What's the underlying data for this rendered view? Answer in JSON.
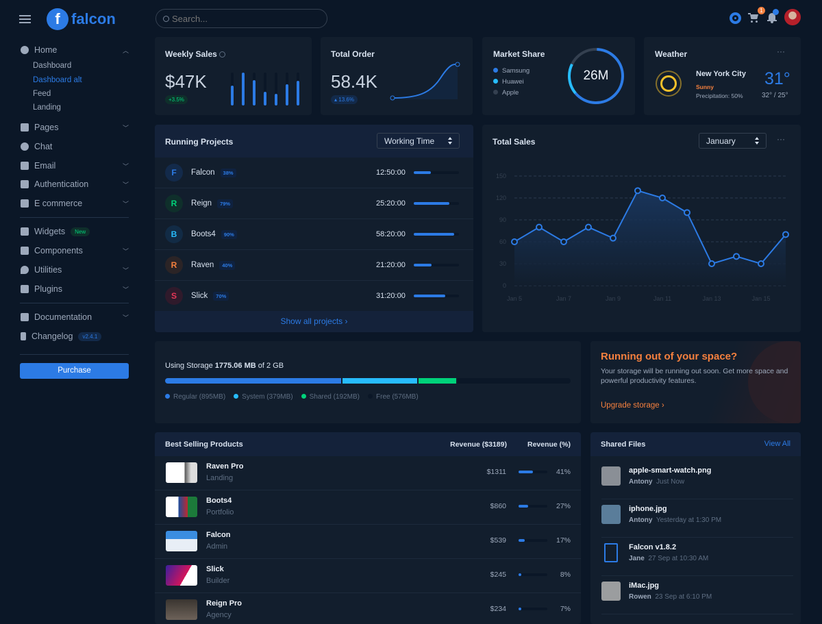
{
  "brand": {
    "name": "falcon"
  },
  "search": {
    "placeholder": "Search..."
  },
  "topbar": {
    "cart_count": "1"
  },
  "sidebar": {
    "home": {
      "label": "Home",
      "sub": [
        "Dashboard",
        "Dashboard alt",
        "Feed",
        "Landing"
      ],
      "active": "Dashboard alt"
    },
    "items": [
      {
        "label": "Pages",
        "icon": "copy-icon"
      },
      {
        "label": "Chat",
        "icon": "comments-icon"
      },
      {
        "label": "Email",
        "icon": "envelope-icon"
      },
      {
        "label": "Authentication",
        "icon": "unlock-icon"
      },
      {
        "label": "E commerce",
        "icon": "cart-icon"
      }
    ],
    "items2": [
      {
        "label": "Widgets",
        "icon": "poll-icon",
        "badge": "New"
      },
      {
        "label": "Components",
        "icon": "puzzle-icon"
      },
      {
        "label": "Utilities",
        "icon": "fire-icon"
      },
      {
        "label": "Plugins",
        "icon": "plug-icon"
      }
    ],
    "items3": [
      {
        "label": "Documentation",
        "icon": "book-icon"
      },
      {
        "label": "Changelog",
        "icon": "code-branch-icon",
        "badge": "v2.4.1"
      }
    ],
    "purchase": "Purchase"
  },
  "weekly_sales": {
    "title": "Weekly Sales",
    "value": "$47K",
    "change": "+3.5%",
    "bars": [
      60,
      100,
      78,
      42,
      36,
      65,
      74
    ]
  },
  "total_order": {
    "title": "Total Order",
    "value": "58.4K",
    "change": "13.6%"
  },
  "market_share": {
    "title": "Market Share",
    "value": "26M",
    "legend": [
      {
        "name": "Samsung",
        "color": "#2c7be5"
      },
      {
        "name": "Huawei",
        "color": "#27bcfd"
      },
      {
        "name": "Apple",
        "color": "#344050"
      }
    ]
  },
  "weather": {
    "title": "Weather",
    "city": "New York City",
    "condition": "Sunny",
    "precipitation": "Precipitation: 50%",
    "temp": "31°",
    "range": "32° / 25°"
  },
  "projects": {
    "title": "Running Projects",
    "select": "Working Time",
    "footer": "Show all projects",
    "rows": [
      {
        "letter": "F",
        "name": "Falcon",
        "pct": "38%",
        "progress": 38,
        "time": "12:50:00",
        "color": "#2c7be5",
        "bg": "#132a4a"
      },
      {
        "letter": "R",
        "name": "Reign",
        "pct": "79%",
        "progress": 79,
        "time": "25:20:00",
        "color": "#00d27a",
        "bg": "#0f2f2b"
      },
      {
        "letter": "B",
        "name": "Boots4",
        "pct": "90%",
        "progress": 90,
        "time": "58:20:00",
        "color": "#27bcfd",
        "bg": "#122b45"
      },
      {
        "letter": "R",
        "name": "Raven",
        "pct": "40%",
        "progress": 40,
        "time": "21:20:00",
        "color": "#f5803e",
        "bg": "#2b2426"
      },
      {
        "letter": "S",
        "name": "Slick",
        "pct": "70%",
        "progress": 70,
        "time": "31:20:00",
        "color": "#e63757",
        "bg": "#2f1a2b"
      }
    ]
  },
  "chart_data": {
    "type": "line",
    "title": "Total Sales",
    "select": "January",
    "x": [
      "Jan 5",
      "Jan 6",
      "Jan 7",
      "Jan 8",
      "Jan 9",
      "Jan 10",
      "Jan 11",
      "Jan 12",
      "Jan 13",
      "Jan 14",
      "Jan 15",
      "Jan 16"
    ],
    "xticks": [
      "Jan 5",
      "Jan 7",
      "Jan 9",
      "Jan 11",
      "Jan 13",
      "Jan 15"
    ],
    "values": [
      60,
      80,
      60,
      80,
      65,
      130,
      120,
      100,
      30,
      40,
      30,
      70
    ],
    "yticks": [
      "150",
      "120",
      "90",
      "60",
      "30",
      "0"
    ],
    "ylim": [
      0,
      150
    ],
    "grid": true,
    "color": "#2c7be5"
  },
  "storage": {
    "label": "Using Storage ",
    "used": "1775.06 MB",
    "of": " of 2 GB",
    "segments": [
      {
        "name": "Regular (895MB)",
        "mb": 895,
        "color": "#2c7be5"
      },
      {
        "name": "System (379MB)",
        "mb": 379,
        "color": "#27bcfd"
      },
      {
        "name": "Shared (192MB)",
        "mb": 192,
        "color": "#00d27a"
      },
      {
        "name": "Free (576MB)",
        "mb": 576,
        "color": "#0b1727"
      }
    ]
  },
  "space": {
    "title": "Running out of your space?",
    "text": "Your storage will be running out soon. Get more space and powerful productivity features.",
    "link": "Upgrade storage"
  },
  "products": {
    "title": "Best Selling Products",
    "col1": "Revenue ($3189)",
    "col2": "Revenue (%)",
    "rows": [
      {
        "name": "Raven Pro",
        "cat": "Landing",
        "rev": "$1311",
        "pct": "41%",
        "p": 41
      },
      {
        "name": "Boots4",
        "cat": "Portfolio",
        "rev": "$860",
        "pct": "27%",
        "p": 27
      },
      {
        "name": "Falcon",
        "cat": "Admin",
        "rev": "$539",
        "pct": "17%",
        "p": 17
      },
      {
        "name": "Slick",
        "cat": "Builder",
        "rev": "$245",
        "pct": "8%",
        "p": 8
      },
      {
        "name": "Reign Pro",
        "cat": "Agency",
        "rev": "$234",
        "pct": "7%",
        "p": 7
      }
    ]
  },
  "files": {
    "title": "Shared Files",
    "view_all": "View All",
    "rows": [
      {
        "name": "apple-smart-watch.png",
        "user": "Antony",
        "time": "Just Now"
      },
      {
        "name": "iphone.jpg",
        "user": "Antony",
        "time": "Yesterday at 1:30 PM"
      },
      {
        "name": "Falcon v1.8.2",
        "user": "Jane",
        "time": "27 Sep at 10:30 AM"
      },
      {
        "name": "iMac.jpg",
        "user": "Rowen",
        "time": "23 Sep at 6:10 PM"
      }
    ]
  }
}
